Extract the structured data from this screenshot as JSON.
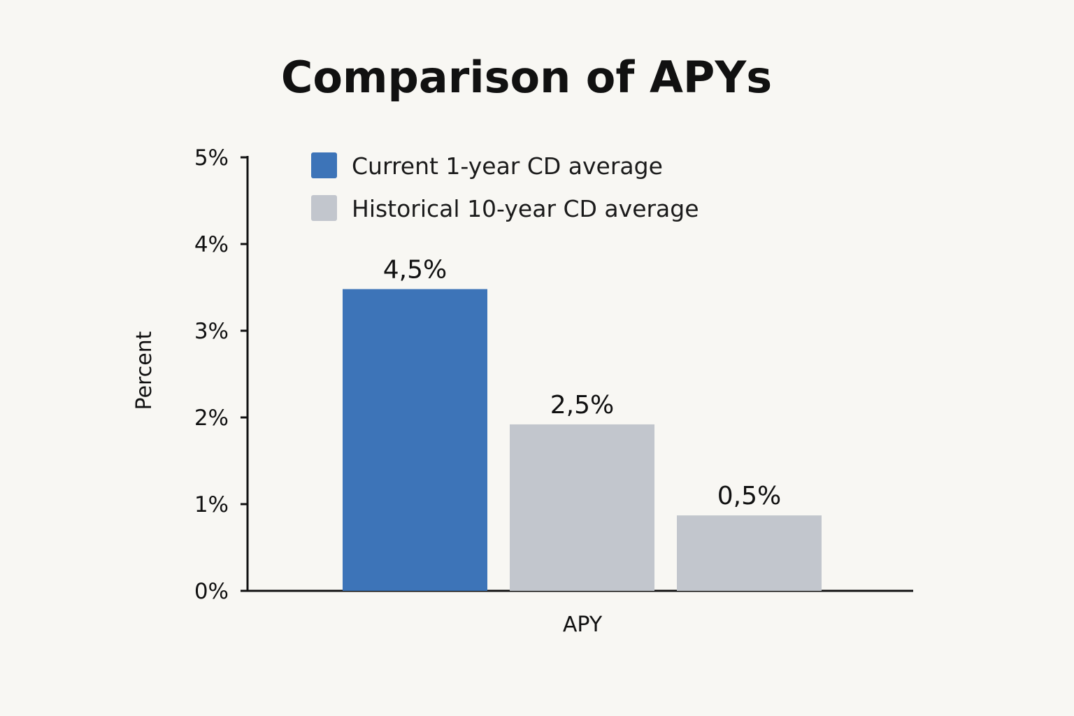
{
  "chart_data": {
    "type": "bar",
    "title": "Comparison of APYs",
    "xlabel": "APY",
    "ylabel": "Percent",
    "ylim": [
      0,
      5
    ],
    "y_ticks": [
      0,
      1,
      2,
      3,
      4,
      5
    ],
    "y_tick_labels": [
      "0%",
      "1%",
      "2%",
      "3%",
      "4%",
      "5%"
    ],
    "grid": false,
    "legend_position": "top-left",
    "legend": [
      {
        "label": "Current 1-year CD average",
        "color": "#3d74b8"
      },
      {
        "label": "Historical 10-year CD average",
        "color": "#c2c6cd"
      }
    ],
    "bars": [
      {
        "value": 3.48,
        "label": "4,5%",
        "color": "#3d74b8"
      },
      {
        "value": 1.92,
        "label": "2,5%",
        "color": "#c2c6cd"
      },
      {
        "value": 0.87,
        "label": "0,5%",
        "color": "#c2c6cd"
      }
    ]
  }
}
